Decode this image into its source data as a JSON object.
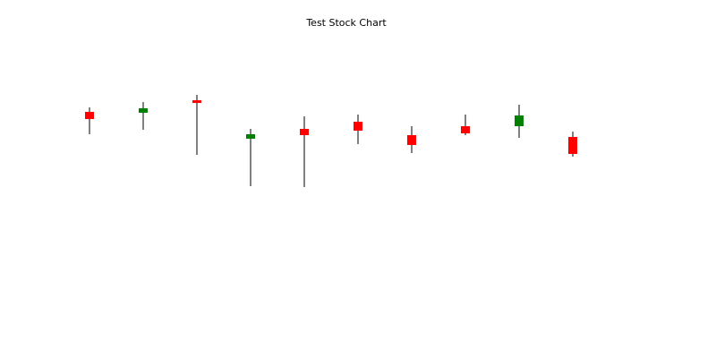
{
  "chart_data": {
    "type": "candlestick",
    "title": "Test Stock Chart",
    "categories": [
      null,
      null,
      null,
      null,
      null,
      null,
      null,
      null,
      null,
      null
    ],
    "open": [
      68.75,
      68.5,
      72,
      61.25,
      64,
      66,
      62.25,
      64.75,
      64.75,
      61.75
    ],
    "high": [
      70,
      71.5,
      73.5,
      64,
      67.5,
      68,
      64.75,
      68,
      70.75,
      63.25
    ],
    "low": [
      62.5,
      63.75,
      56.75,
      48,
      47.75,
      59.75,
      57.25,
      62.25,
      61.5,
      56.25
    ],
    "close": [
      66.75,
      69.75,
      71.25,
      62.5,
      62.25,
      63.5,
      59.5,
      62.75,
      67.75,
      57
    ],
    "up_color": "#008000",
    "down_color": "#ff0000",
    "wick_color": "#000000",
    "ylim": [
      0,
      100
    ]
  }
}
